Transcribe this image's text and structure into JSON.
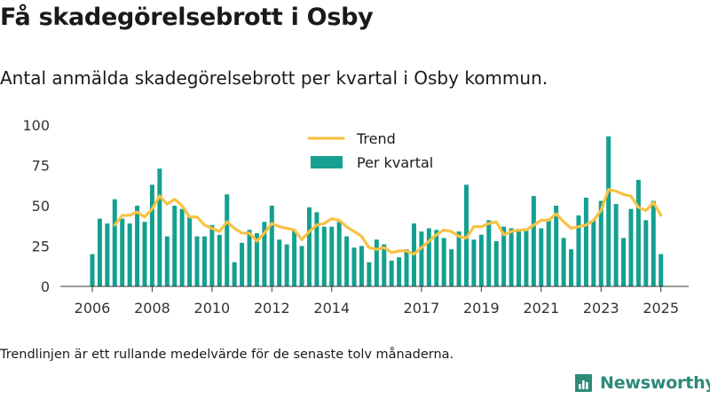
{
  "title": "Få skadegörelsebrott i Osby",
  "subtitle": "Antal anmälda skadegörelsebrott per kvartal i Osby kommun.",
  "footnote": "Trendlinjen är ett rullande medelvärde för de senaste tolv månaderna.",
  "brand": "Newsworthy",
  "colors": {
    "bars": "#14a090",
    "trend": "#f7c244",
    "brand": "#2e8a78"
  },
  "chart_data": {
    "type": "bar",
    "x": [
      "2006Q1",
      "2006Q2",
      "2006Q3",
      "2006Q4",
      "2007Q1",
      "2007Q2",
      "2007Q3",
      "2007Q4",
      "2008Q1",
      "2008Q2",
      "2008Q3",
      "2008Q4",
      "2009Q1",
      "2009Q2",
      "2009Q3",
      "2009Q4",
      "2010Q1",
      "2010Q2",
      "2010Q3",
      "2010Q4",
      "2011Q1",
      "2011Q2",
      "2011Q3",
      "2011Q4",
      "2012Q1",
      "2012Q2",
      "2012Q3",
      "2012Q4",
      "2013Q1",
      "2013Q2",
      "2013Q3",
      "2013Q4",
      "2014Q1",
      "2014Q2",
      "2014Q3",
      "2014Q4",
      "2015Q1",
      "2015Q2",
      "2015Q3",
      "2015Q4",
      "2016Q1",
      "2016Q2",
      "2016Q3",
      "2016Q4",
      "2017Q1",
      "2017Q2",
      "2017Q3",
      "2017Q4",
      "2018Q1",
      "2018Q2",
      "2018Q3",
      "2018Q4",
      "2019Q1",
      "2019Q2",
      "2019Q3",
      "2019Q4",
      "2020Q1",
      "2020Q2",
      "2020Q3",
      "2020Q4",
      "2021Q1",
      "2021Q2",
      "2021Q3",
      "2021Q4",
      "2022Q1",
      "2022Q2",
      "2022Q3",
      "2022Q4",
      "2023Q1",
      "2023Q2",
      "2023Q3",
      "2023Q4",
      "2024Q1",
      "2024Q2",
      "2024Q3",
      "2024Q4",
      "2025Q1"
    ],
    "series": [
      {
        "name": "Per kvartal",
        "values": [
          20,
          42,
          39,
          54,
          42,
          39,
          50,
          40,
          63,
          73,
          31,
          50,
          48,
          43,
          31,
          31,
          38,
          32,
          57,
          15,
          27,
          35,
          33,
          40,
          50,
          29,
          26,
          35,
          25,
          49,
          46,
          37,
          37,
          40,
          31,
          24,
          25,
          15,
          29,
          26,
          16,
          18,
          23,
          39,
          34,
          36,
          35,
          30,
          23,
          34,
          63,
          29,
          32,
          41,
          28,
          37,
          36,
          34,
          36,
          56,
          36,
          42,
          50,
          30,
          23,
          44,
          55,
          41,
          53,
          93,
          51,
          30,
          48,
          66,
          41,
          53,
          20
        ]
      },
      {
        "name": "Trend",
        "values": [
          null,
          null,
          null,
          38,
          44,
          44,
          46,
          43,
          48,
          56,
          51,
          54,
          50,
          43,
          43,
          38,
          36,
          34,
          40,
          36,
          33,
          33,
          28,
          33,
          39,
          37,
          36,
          35,
          29,
          34,
          38,
          39,
          42,
          41,
          37,
          34,
          31,
          24,
          23,
          24,
          21,
          22,
          22,
          20,
          24,
          28,
          32,
          35,
          34,
          31,
          30,
          37,
          37,
          39,
          40,
          32,
          34,
          35,
          35,
          38,
          41,
          41,
          45,
          40,
          36,
          37,
          38,
          41,
          47,
          60,
          59,
          57,
          56,
          49,
          47,
          52,
          44
        ]
      }
    ],
    "xticks": [
      "2006",
      "2008",
      "2010",
      "2012",
      "2014",
      "2017",
      "2019",
      "2021",
      "2023",
      "2025"
    ],
    "yticks": [
      0,
      25,
      50,
      75,
      100
    ],
    "ylim": [
      0,
      100
    ],
    "legend": [
      "Trend",
      "Per kvartal"
    ],
    "legend_placement": "top-center",
    "grid": false
  }
}
